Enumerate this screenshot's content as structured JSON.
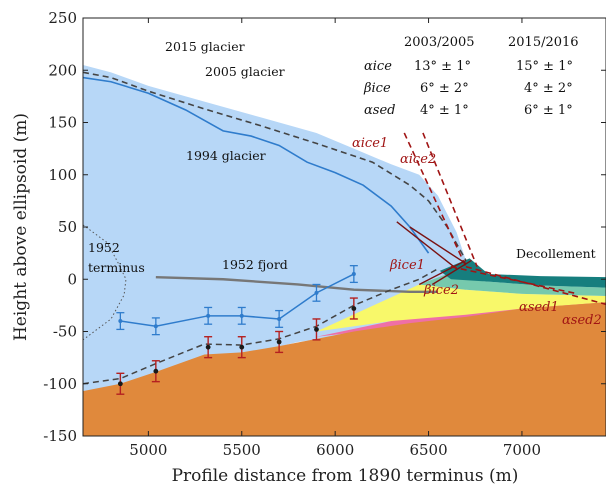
{
  "chart_data": {
    "type": "area",
    "xlabel": "Profile distance from 1890 terminus (m)",
    "ylabel": "Height above ellipsoid (m)",
    "xlim": [
      4650,
      7450
    ],
    "ylim": [
      -150,
      250
    ],
    "xticks": [
      5000,
      5500,
      6000,
      6500,
      7000
    ],
    "yticks": [
      -150,
      -100,
      -50,
      0,
      50,
      100,
      150,
      200,
      250
    ],
    "colors": {
      "glacier_2015": "#b7d7f7",
      "bedrock": "#e0893c",
      "sed_pink": "#ef6fa6",
      "sed_yellow": "#f8f86a",
      "sed_green": "#76c9ad",
      "teal": "#167e7e",
      "line_1994": "#2f7ccc",
      "line_dashed": "#444444",
      "line_fjord": "#777777",
      "alpha_red": "#a01414",
      "errorbar_blue": "#2f7ccc",
      "errorbar_red": "#b42020"
    },
    "series": [
      {
        "name": "2015 glacier",
        "x": [
          4650,
          4800,
          5000,
          5300,
          5600,
          5900,
          6100,
          6300,
          6450,
          6550,
          6650,
          6700
        ],
        "y": [
          205,
          198,
          185,
          170,
          155,
          140,
          125,
          110,
          100,
          80,
          45,
          18
        ]
      },
      {
        "name": "2005 glacier",
        "x": [
          4650,
          4800,
          5000,
          5300,
          5600,
          5900,
          6200,
          6400,
          6500,
          6600,
          6700
        ],
        "y": [
          198,
          193,
          180,
          163,
          147,
          130,
          112,
          90,
          75,
          50,
          18
        ]
      },
      {
        "name": "1994 glacier",
        "x": [
          4650,
          4800,
          5000,
          5200,
          5400,
          5550,
          5700,
          5850,
          6000,
          6150,
          6300,
          6400,
          6480,
          6500
        ],
        "y": [
          193,
          189,
          178,
          162,
          142,
          137,
          128,
          112,
          102,
          90,
          70,
          50,
          30,
          25
        ]
      },
      {
        "name": "1952 fjord",
        "x": [
          5040,
          5400,
          5800,
          6100,
          6400,
          6550
        ],
        "y": [
          2,
          0,
          -5,
          -10,
          -12,
          -12
        ]
      },
      {
        "name": "1952 terminus",
        "x": [
          4650,
          4780,
          4840,
          4880,
          4870,
          4800,
          4650
        ],
        "y": [
          52,
          35,
          15,
          0,
          -15,
          -38,
          -58
        ]
      },
      {
        "name": "Bedrock",
        "x": [
          4650,
          4850,
          5050,
          5300,
          5500,
          5700,
          5900,
          6100,
          6400,
          6700,
          7000,
          7450
        ],
        "y": [
          -107,
          -100,
          -88,
          -72,
          -70,
          -64,
          -57,
          -50,
          -42,
          -36,
          -28,
          -22
        ]
      },
      {
        "name": "Bed profile (dashed)",
        "x": [
          4650,
          4850,
          5050,
          5300,
          5500,
          5700,
          5900,
          6100,
          6300,
          6450,
          6550
        ],
        "y": [
          -100,
          -95,
          -80,
          -62,
          -63,
          -57,
          -45,
          -25,
          -10,
          0,
          10
        ]
      },
      {
        "name": "Blue bed points",
        "x": [
          4850,
          5040,
          5320,
          5500,
          5700,
          5900,
          6100
        ],
        "y": [
          -40,
          -45,
          -35,
          -35,
          -38,
          -13,
          5
        ],
        "err": [
          8,
          8,
          8,
          8,
          8,
          8,
          8
        ]
      },
      {
        "name": "Red bed points",
        "x": [
          4850,
          5040,
          5320,
          5500,
          5700,
          5900,
          6100
        ],
        "y": [
          -100,
          -88,
          -65,
          -65,
          -60,
          -48,
          -28
        ],
        "err": [
          10,
          10,
          10,
          10,
          10,
          10,
          10
        ]
      }
    ],
    "annotations": {
      "glacier_2015": "2015 glacier",
      "glacier_2005": "2005 glacier",
      "glacier_1994": "1994 glacier",
      "fjord_1952": "1952 fjord",
      "terminus_1952_line1": "1952",
      "terminus_1952_line2": "terminus",
      "decollement": "Decollement",
      "alpha_ice1": "αice1",
      "alpha_ice2": "αice2",
      "beta_ice1": "βice1",
      "beta_ice2": "βice2",
      "alpha_sed1": "αsed1",
      "alpha_sed2": "αsed2"
    },
    "table": {
      "columns": [
        "2003/2005",
        "2015/2016"
      ],
      "rows": [
        {
          "label": "αice",
          "values": [
            "13° ± 1°",
            "15° ± 1°"
          ]
        },
        {
          "label": "βice",
          "values": [
            "6° ± 2°",
            "4° ± 2°"
          ]
        },
        {
          "label": "αsed",
          "values": [
            "4° ± 1°",
            "6° ± 1°"
          ]
        }
      ]
    }
  }
}
